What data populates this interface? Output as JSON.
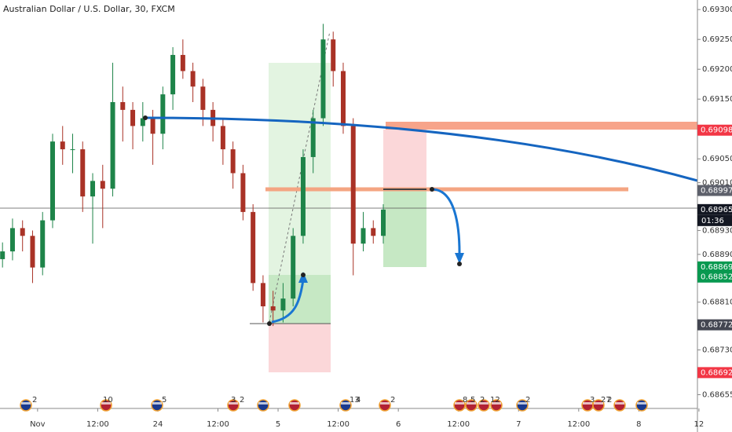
{
  "chart_data": {
    "type": "candlestick",
    "title": "Australian Dollar / U.S. Dollar, 30, FXCM",
    "xlim": [
      -7.5,
      131.7
    ],
    "ylim": [
      0.68632,
      0.69316
    ],
    "xticks": [
      {
        "value": 0,
        "label": "Nov"
      },
      {
        "value": 12,
        "label": "12:00"
      },
      24,
      {
        "value": 36,
        "label": "12:00"
      },
      {
        "value": 48,
        "label": "5"
      },
      {
        "value": 60,
        "label": "12:00"
      },
      {
        "value": 72,
        "label": "6"
      },
      {
        "value": 84,
        "label": "12:00"
      },
      {
        "value": 96,
        "label": "7"
      },
      {
        "value": 108,
        "label": "12:00"
      },
      {
        "value": 120,
        "label": "8"
      },
      {
        "value": 132,
        "label": "12"
      }
    ],
    "yticks": [
      {
        "value": 0.693,
        "label": "0.69300"
      },
      {
        "value": 0.6925,
        "label": "0.69250"
      },
      {
        "value": 0.692,
        "label": "0.69200"
      },
      {
        "value": 0.6915,
        "label": "0.69150"
      },
      {
        "value": 0.6905,
        "label": "0.69050"
      },
      {
        "value": 0.6901,
        "label": "0.69010"
      },
      {
        "value": 0.6893,
        "label": "0.68930"
      },
      {
        "value": 0.6889,
        "label": "0.68890"
      },
      {
        "value": 0.6881,
        "label": "0.68810"
      },
      {
        "value": 0.6873,
        "label": "0.68730"
      },
      {
        "value": 0.68655,
        "label": "0.68655"
      }
    ],
    "grid": false,
    "up_color": "#1e8449",
    "down_color": "#a93226",
    "x": [
      -7,
      -5,
      -3,
      -1,
      1,
      3,
      5,
      7,
      9,
      11,
      13,
      15,
      17,
      19,
      21,
      23,
      25,
      27,
      29,
      31,
      33,
      35,
      37,
      39,
      41,
      43,
      45,
      47,
      49,
      51,
      53,
      55,
      57,
      59,
      61,
      63,
      65,
      67,
      69
    ],
    "open": [
      0.68882,
      0.68895,
      0.68934,
      0.68921,
      0.68868,
      0.68947,
      0.69079,
      0.69066,
      0.69066,
      0.68987,
      0.69013,
      0.69,
      0.69145,
      0.69132,
      0.69105,
      0.69118,
      0.69092,
      0.69158,
      0.69224,
      0.69197,
      0.69171,
      0.69132,
      0.69105,
      0.69066,
      0.69026,
      0.68961,
      0.68842,
      0.68803,
      0.68796,
      0.68816,
      0.68921,
      0.69053,
      0.69118,
      0.6925,
      0.69197,
      0.69105,
      0.68908,
      0.68934,
      0.68921
    ],
    "high": [
      0.6891,
      0.6895,
      0.68947,
      0.6893,
      0.68961,
      0.69092,
      0.69105,
      0.69092,
      0.69079,
      0.69026,
      0.6904,
      0.69211,
      0.69171,
      0.69145,
      0.69145,
      0.69132,
      0.69171,
      0.69237,
      0.6925,
      0.69211,
      0.69184,
      0.69145,
      0.69118,
      0.69079,
      0.6904,
      0.68974,
      0.68855,
      0.68829,
      0.68842,
      0.68934,
      0.69066,
      0.69132,
      0.69276,
      0.69263,
      0.69211,
      0.69118,
      0.68961,
      0.68947,
      0.68974
    ],
    "low": [
      0.68868,
      0.6888,
      0.68895,
      0.68842,
      0.68855,
      0.68934,
      0.6904,
      0.69026,
      0.68961,
      0.68908,
      0.68934,
      0.68987,
      0.69079,
      0.69066,
      0.69079,
      0.6904,
      0.69066,
      0.69132,
      0.69184,
      0.69145,
      0.69105,
      0.69079,
      0.6904,
      0.69,
      0.68947,
      0.68829,
      0.68776,
      0.6877,
      0.68776,
      0.68803,
      0.68908,
      0.69026,
      0.69105,
      0.69171,
      0.69092,
      0.68855,
      0.68895,
      0.68908,
      0.68908
    ],
    "close": [
      0.68895,
      0.68934,
      0.68921,
      0.68868,
      0.68947,
      0.69079,
      0.69066,
      0.69066,
      0.68987,
      0.69013,
      0.69,
      0.69145,
      0.69132,
      0.69105,
      0.69118,
      0.69092,
      0.69158,
      0.69224,
      0.69197,
      0.69171,
      0.69132,
      0.69105,
      0.69066,
      0.69026,
      0.68961,
      0.68842,
      0.68803,
      0.68796,
      0.68816,
      0.68921,
      0.69053,
      0.69118,
      0.6925,
      0.69197,
      0.69105,
      0.68908,
      0.68934,
      0.68921,
      0.68965
    ],
    "price_labels": [
      {
        "value": 0.69098,
        "label": "0.69098",
        "color": "#f23645"
      },
      {
        "value": 0.68997,
        "label": "0.68997",
        "color": "#5d606b"
      },
      {
        "value": 0.68965,
        "label": "0.68965",
        "color": "#131722"
      },
      {
        "value": 0.68869,
        "label": "0.68869",
        "color": "#089950"
      },
      {
        "value": 0.68852,
        "label": "0.68852",
        "color": "#089950"
      },
      {
        "value": 0.68772,
        "label": "0.68772",
        "color": "#434651"
      },
      {
        "value": 0.68692,
        "label": "0.68692",
        "color": "#f23645"
      }
    ],
    "countdown": "01:36",
    "event_labels": [
      "2",
      "10",
      "5",
      "3",
      "2",
      "13",
      "4",
      "2",
      "8",
      "5",
      "2",
      "12",
      "2",
      "3",
      "27",
      "2"
    ]
  }
}
